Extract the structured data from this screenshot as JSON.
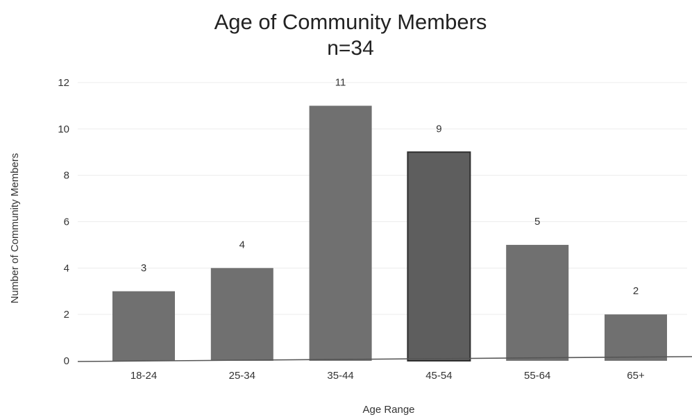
{
  "chart_data": {
    "type": "bar",
    "title": "Age of Community Members",
    "subtitle": "n=34",
    "xlabel": "Age Range",
    "ylabel": "Number of Community Members",
    "categories": [
      "18-24",
      "25-34",
      "35-44",
      "45-54",
      "55-64",
      "65+"
    ],
    "values": [
      3,
      4,
      11,
      9,
      5,
      2
    ],
    "value_labels": [
      "3",
      "4",
      "11",
      "9",
      "5",
      "2"
    ],
    "ylim": [
      0,
      12
    ],
    "yticks": [
      "0",
      "2",
      "4",
      "6",
      "8",
      "10",
      "12"
    ],
    "grid": true,
    "legend": "none",
    "bar_color": "#707070",
    "highlight_color": "#5e5e5e",
    "highlight_index": 3
  }
}
